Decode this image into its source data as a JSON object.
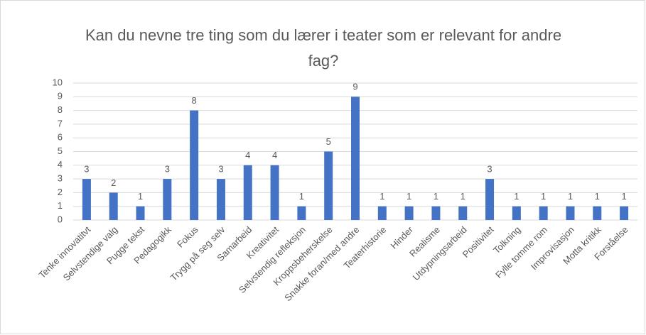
{
  "chart_data": {
    "type": "bar",
    "title": "Kan du nevne tre ting som du lærer i teater som er relevant for andre fag?",
    "categories": [
      "Tenke innovatitvt",
      "Selvstendige valg",
      "Pugge tekst",
      "Pedagogikk",
      "Fokus",
      "Trygg på seg selv",
      "Samarbeid",
      "Kreativitet",
      "Selvstendig refleksjon",
      "Kroppsbeherskelse",
      "Snakke foran/med andre",
      "Teaterhistorie",
      "Hinder",
      "Realisme",
      "Utdypningsarbeid",
      "Positivitet",
      "Tolkning",
      "Fylle tomme rom",
      "Improvisasjon",
      "Motta kritikk",
      "Forståelse"
    ],
    "values": [
      3,
      2,
      1,
      3,
      8,
      3,
      4,
      4,
      1,
      5,
      9,
      1,
      1,
      1,
      1,
      3,
      1,
      1,
      1,
      1,
      1
    ],
    "color": "#4472c4",
    "ylim": [
      0,
      10
    ],
    "yticks": [
      0,
      1,
      2,
      3,
      4,
      5,
      6,
      7,
      8,
      9,
      10
    ],
    "grid": true
  }
}
